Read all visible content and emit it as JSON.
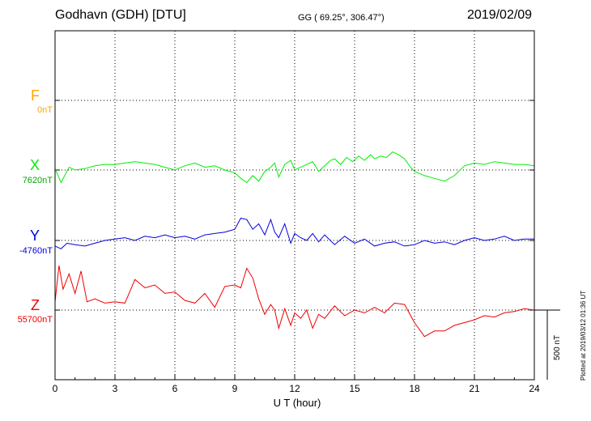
{
  "header": {
    "station": "Godhavn (GDH)  [DTU]",
    "coords": "GG ( 69.25°, 306.47°)",
    "date": "2019/02/09"
  },
  "plotted_note": "Plotted at 2019/03/12 01:36 UT",
  "scale_label": "500 nT",
  "colors": {
    "F": "#ffa500",
    "X": "#00ee00",
    "Y": "#0000dd",
    "Z": "#ee0000",
    "grid": "#000000"
  },
  "chart_data": {
    "type": "line",
    "title": "Godhavn (GDH)  [DTU]",
    "xlabel": "U T (hour)",
    "ylabel": "",
    "xlim": [
      0,
      24
    ],
    "x_ticks": [
      "0",
      "3",
      "6",
      "9",
      "12",
      "15",
      "18",
      "21",
      "24"
    ],
    "scale_bar_nT": 500,
    "grid": true,
    "series": [
      {
        "name": "F",
        "baseline_label": "0nT",
        "color": "#ffa500",
        "x": [],
        "values": []
      },
      {
        "name": "X",
        "baseline_label": "7620nT",
        "color": "#00ee00",
        "x": [
          0,
          0.3,
          0.7,
          1,
          1.5,
          2,
          2.5,
          3,
          3.5,
          4,
          4.5,
          5,
          5.5,
          6,
          6.5,
          7,
          7.5,
          8,
          8.5,
          9,
          9.3,
          9.6,
          9.9,
          10.2,
          10.5,
          10.8,
          11,
          11.2,
          11.5,
          11.8,
          12,
          12.3,
          12.6,
          12.9,
          13.2,
          13.5,
          13.8,
          14,
          14.3,
          14.6,
          14.9,
          15.2,
          15.5,
          15.8,
          16,
          16.3,
          16.6,
          16.9,
          17.2,
          17.5,
          17.8,
          18,
          18.5,
          19,
          19.5,
          20,
          20.5,
          21,
          21.5,
          22,
          22.5,
          23,
          23.5,
          24
        ],
        "values": [
          10,
          -90,
          20,
          0,
          10,
          30,
          40,
          40,
          50,
          60,
          50,
          40,
          20,
          0,
          30,
          50,
          20,
          30,
          0,
          -20,
          -60,
          -90,
          -40,
          -80,
          -10,
          20,
          50,
          -50,
          40,
          70,
          0,
          20,
          40,
          60,
          -10,
          30,
          70,
          80,
          40,
          90,
          60,
          100,
          70,
          110,
          80,
          100,
          90,
          130,
          110,
          80,
          20,
          -10,
          -40,
          -60,
          -80,
          -40,
          30,
          50,
          40,
          60,
          50,
          40,
          40,
          30
        ]
      },
      {
        "name": "Y",
        "baseline_label": "-4760nT",
        "color": "#0000dd",
        "x": [
          0,
          0.3,
          0.6,
          1,
          1.5,
          2,
          2.5,
          3,
          3.5,
          4,
          4.5,
          5,
          5.5,
          6,
          6.5,
          7,
          7.5,
          8,
          8.5,
          9,
          9.3,
          9.6,
          9.9,
          10.2,
          10.5,
          10.8,
          11,
          11.2,
          11.5,
          11.8,
          12,
          12.3,
          12.6,
          12.9,
          13.2,
          13.5,
          14,
          14.5,
          15,
          15.5,
          16,
          16.5,
          17,
          17.5,
          18,
          18.5,
          19,
          19.5,
          20,
          20.5,
          21,
          21.5,
          22,
          22.5,
          23,
          23.5,
          24
        ],
        "values": [
          -40,
          -60,
          -20,
          -30,
          -40,
          -20,
          0,
          10,
          20,
          0,
          30,
          20,
          40,
          20,
          30,
          10,
          40,
          50,
          60,
          80,
          160,
          150,
          80,
          120,
          40,
          150,
          60,
          20,
          120,
          -20,
          50,
          20,
          0,
          50,
          -10,
          40,
          -30,
          30,
          -20,
          10,
          -40,
          -20,
          -10,
          -40,
          -30,
          0,
          -20,
          -10,
          -30,
          0,
          20,
          0,
          10,
          30,
          0,
          10,
          10
        ]
      },
      {
        "name": "Z",
        "baseline_label": "55700nT",
        "color": "#ee0000",
        "x": [
          0,
          0.2,
          0.4,
          0.7,
          1,
          1.3,
          1.6,
          2,
          2.5,
          3,
          3.5,
          4,
          4.5,
          5,
          5.5,
          6,
          6.5,
          7,
          7.5,
          8,
          8.5,
          9,
          9.3,
          9.6,
          9.9,
          10.2,
          10.5,
          10.8,
          11,
          11.2,
          11.5,
          11.8,
          12,
          12.3,
          12.6,
          12.9,
          13.2,
          13.5,
          14,
          14.5,
          15,
          15.5,
          16,
          16.5,
          17,
          17.5,
          18,
          18.5,
          19,
          19.5,
          20,
          20.5,
          21,
          21.5,
          22,
          22.5,
          23,
          23.5,
          24
        ],
        "values": [
          60,
          320,
          150,
          260,
          120,
          280,
          60,
          80,
          50,
          60,
          50,
          220,
          160,
          180,
          120,
          130,
          70,
          50,
          120,
          20,
          170,
          180,
          160,
          300,
          230,
          80,
          -30,
          40,
          0,
          -130,
          10,
          -110,
          -20,
          -60,
          0,
          -130,
          -30,
          -60,
          30,
          -40,
          0,
          -20,
          20,
          -20,
          50,
          40,
          -90,
          -190,
          -150,
          -150,
          -110,
          -90,
          -70,
          -40,
          -50,
          -20,
          -10,
          10,
          0
        ]
      }
    ]
  }
}
